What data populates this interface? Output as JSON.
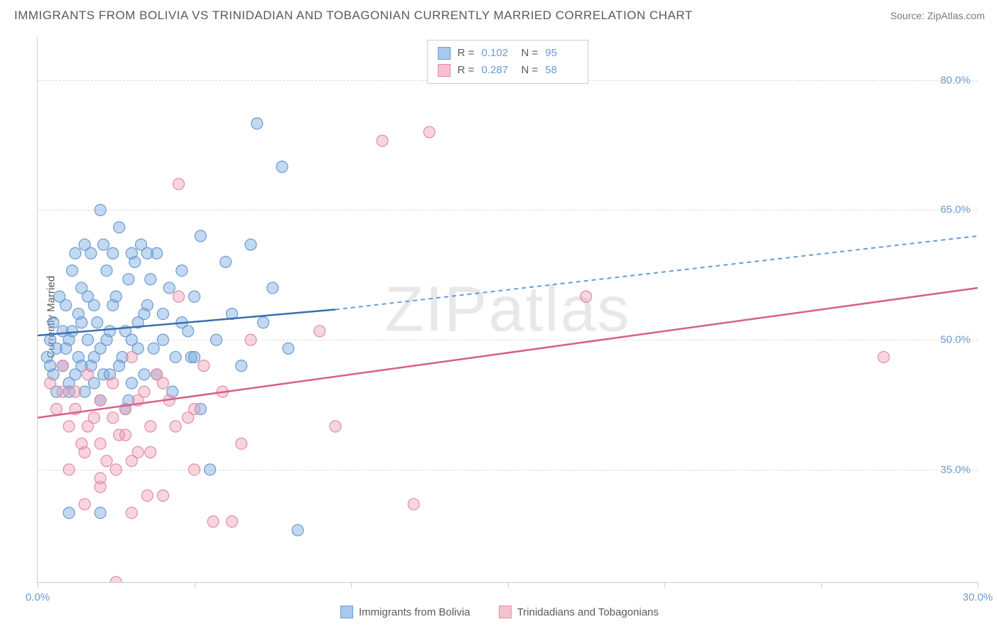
{
  "title": "IMMIGRANTS FROM BOLIVIA VS TRINIDADIAN AND TOBAGONIAN CURRENTLY MARRIED CORRELATION CHART",
  "source": "Source: ZipAtlas.com",
  "watermark": "ZIPatlas",
  "ylabel": "Currently Married",
  "chart": {
    "type": "scatter",
    "background_color": "#ffffff",
    "grid_color": "#dddddd",
    "axis_color": "#cccccc",
    "xlim": [
      0,
      30
    ],
    "ylim": [
      22,
      85
    ],
    "xtick_positions": [
      0,
      5,
      10,
      15,
      20,
      25,
      30
    ],
    "xtick_labels": {
      "0": "0.0%",
      "30": "30.0%"
    },
    "ytick_positions": [
      35,
      50,
      65,
      80
    ],
    "ytick_labels": {
      "35": "35.0%",
      "50": "50.0%",
      "65": "65.0%",
      "80": "80.0%"
    },
    "legend_stats": [
      {
        "swatch_fill": "#a8c8ec",
        "swatch_border": "#6b9bd1",
        "r": "0.102",
        "n": "95"
      },
      {
        "swatch_fill": "#f4c2cf",
        "swatch_border": "#e38ba5",
        "r": "0.287",
        "n": "58"
      }
    ],
    "legend_bottom": [
      {
        "label": "Immigrants from Bolivia",
        "swatch_fill": "#a8c8ec",
        "swatch_border": "#6b9bd1"
      },
      {
        "label": "Trinidadians and Tobagonians",
        "swatch_fill": "#f4c2cf",
        "swatch_border": "#e38ba5"
      }
    ],
    "series": [
      {
        "name": "bolivia",
        "color_fill": "rgba(120,170,225,0.45)",
        "color_stroke": "#6b9bd1",
        "marker_radius": 8,
        "trend": {
          "x1": 0,
          "y1": 50.5,
          "x2": 9.5,
          "y2": 53.5,
          "solid_color": "#3a6fb0",
          "dash_x2": 30,
          "dash_y2": 62,
          "dash_color": "#6b9bd1"
        },
        "points": [
          [
            0.3,
            48
          ],
          [
            0.4,
            50
          ],
          [
            0.5,
            46
          ],
          [
            0.5,
            52
          ],
          [
            0.6,
            49
          ],
          [
            0.7,
            55
          ],
          [
            0.8,
            47
          ],
          [
            0.8,
            51
          ],
          [
            0.9,
            54
          ],
          [
            1.0,
            45
          ],
          [
            1.0,
            50
          ],
          [
            1.1,
            58
          ],
          [
            1.2,
            60
          ],
          [
            1.3,
            48
          ],
          [
            1.3,
            53
          ],
          [
            1.4,
            56
          ],
          [
            1.5,
            44
          ],
          [
            1.5,
            61
          ],
          [
            1.6,
            50
          ],
          [
            1.7,
            47
          ],
          [
            1.8,
            54
          ],
          [
            1.9,
            52
          ],
          [
            2.0,
            65
          ],
          [
            2.0,
            49
          ],
          [
            2.1,
            46
          ],
          [
            2.2,
            58
          ],
          [
            2.3,
            51
          ],
          [
            2.4,
            60
          ],
          [
            2.5,
            55
          ],
          [
            2.6,
            63
          ],
          [
            2.7,
            48
          ],
          [
            2.8,
            42
          ],
          [
            2.9,
            57
          ],
          [
            3.0,
            50
          ],
          [
            3.1,
            59
          ],
          [
            3.2,
            52
          ],
          [
            3.3,
            61
          ],
          [
            3.4,
            46
          ],
          [
            3.5,
            54
          ],
          [
            3.7,
            49
          ],
          [
            3.8,
            60
          ],
          [
            4.0,
            53
          ],
          [
            4.2,
            56
          ],
          [
            4.4,
            48
          ],
          [
            4.6,
            58
          ],
          [
            4.8,
            51
          ],
          [
            5.0,
            55
          ],
          [
            5.2,
            62
          ],
          [
            5.5,
            35
          ],
          [
            5.7,
            50
          ],
          [
            6.0,
            59
          ],
          [
            6.2,
            53
          ],
          [
            6.5,
            47
          ],
          [
            6.8,
            61
          ],
          [
            7.0,
            75
          ],
          [
            7.2,
            52
          ],
          [
            7.5,
            56
          ],
          [
            7.8,
            70
          ],
          [
            8.0,
            49
          ],
          [
            8.3,
            28
          ],
          [
            1.0,
            44
          ],
          [
            1.2,
            46
          ],
          [
            1.4,
            52
          ],
          [
            1.6,
            55
          ],
          [
            1.8,
            48
          ],
          [
            2.0,
            43
          ],
          [
            2.2,
            50
          ],
          [
            2.4,
            54
          ],
          [
            2.6,
            47
          ],
          [
            2.8,
            51
          ],
          [
            3.0,
            45
          ],
          [
            3.2,
            49
          ],
          [
            3.4,
            53
          ],
          [
            3.6,
            57
          ],
          [
            3.8,
            46
          ],
          [
            4.0,
            50
          ],
          [
            4.3,
            44
          ],
          [
            4.6,
            52
          ],
          [
            4.9,
            48
          ],
          [
            5.2,
            42
          ],
          [
            1.7,
            60
          ],
          [
            2.1,
            61
          ],
          [
            0.6,
            44
          ],
          [
            0.9,
            49
          ],
          [
            1.1,
            51
          ],
          [
            1.4,
            47
          ],
          [
            1.8,
            45
          ],
          [
            2.3,
            46
          ],
          [
            2.9,
            43
          ],
          [
            5.0,
            48
          ],
          [
            3.0,
            60
          ],
          [
            3.5,
            60
          ],
          [
            0.4,
            47
          ],
          [
            1.0,
            30
          ],
          [
            2.0,
            30
          ]
        ]
      },
      {
        "name": "trinidad",
        "color_fill": "rgba(235,150,175,0.40)",
        "color_stroke": "#e38ba5",
        "marker_radius": 8,
        "trend": {
          "x1": 0,
          "y1": 41,
          "x2": 30,
          "y2": 56,
          "solid_color": "#d85f87"
        },
        "points": [
          [
            0.4,
            45
          ],
          [
            0.6,
            42
          ],
          [
            0.8,
            47
          ],
          [
            1.0,
            40
          ],
          [
            1.2,
            44
          ],
          [
            1.4,
            38
          ],
          [
            1.6,
            46
          ],
          [
            1.8,
            41
          ],
          [
            2.0,
            43
          ],
          [
            2.2,
            36
          ],
          [
            2.4,
            45
          ],
          [
            2.6,
            39
          ],
          [
            2.8,
            42
          ],
          [
            3.0,
            48
          ],
          [
            3.2,
            37
          ],
          [
            3.4,
            44
          ],
          [
            3.6,
            40
          ],
          [
            3.8,
            46
          ],
          [
            4.0,
            32
          ],
          [
            4.2,
            43
          ],
          [
            4.5,
            55
          ],
          [
            4.8,
            41
          ],
          [
            5.0,
            35
          ],
          [
            5.3,
            47
          ],
          [
            5.6,
            29
          ],
          [
            5.9,
            44
          ],
          [
            6.2,
            29
          ],
          [
            6.5,
            38
          ],
          [
            6.8,
            50
          ],
          [
            4.5,
            68
          ],
          [
            1.5,
            31
          ],
          [
            2.0,
            33
          ],
          [
            2.5,
            35
          ],
          [
            3.0,
            30
          ],
          [
            3.5,
            32
          ],
          [
            1.0,
            35
          ],
          [
            1.5,
            37
          ],
          [
            2.0,
            34
          ],
          [
            2.5,
            22
          ],
          [
            3.0,
            36
          ],
          [
            9.0,
            51
          ],
          [
            9.5,
            40
          ],
          [
            11.0,
            73
          ],
          [
            12.0,
            31
          ],
          [
            12.5,
            74
          ],
          [
            17.5,
            55
          ],
          [
            27.0,
            48
          ],
          [
            0.8,
            44
          ],
          [
            1.2,
            42
          ],
          [
            1.6,
            40
          ],
          [
            2.0,
            38
          ],
          [
            2.4,
            41
          ],
          [
            2.8,
            39
          ],
          [
            3.2,
            43
          ],
          [
            3.6,
            37
          ],
          [
            4.0,
            45
          ],
          [
            4.4,
            40
          ],
          [
            5.0,
            42
          ]
        ]
      }
    ]
  }
}
